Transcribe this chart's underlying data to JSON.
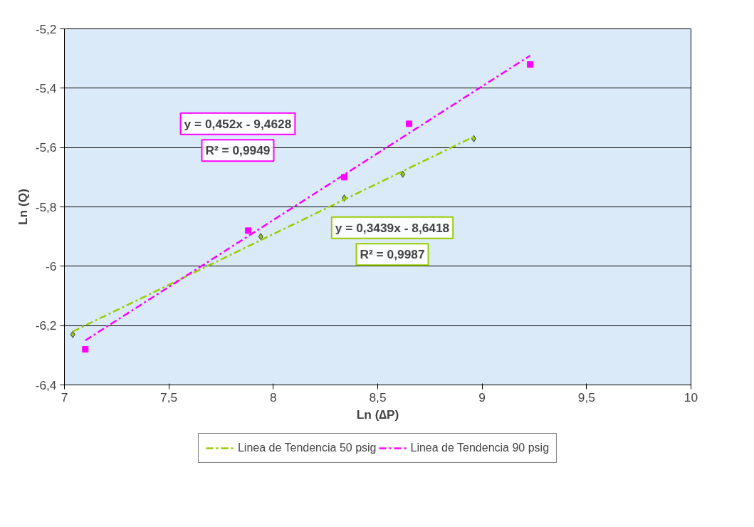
{
  "chart_data": {
    "type": "scatter",
    "xlabel": "Ln (∆P)",
    "ylabel": "Ln (Q)",
    "xlim": [
      7,
      10
    ],
    "xticks": [
      7,
      {
        "value": 7.5,
        "label": "7,5"
      },
      8,
      {
        "value": 8.5,
        "label": "8,5"
      },
      9,
      {
        "value": 9.5,
        "label": "9,5"
      },
      10
    ],
    "ylim": [
      -6.4,
      -5.2
    ],
    "yticks": [
      {
        "value": -6.4,
        "label": "-6,4"
      },
      {
        "value": -6.2,
        "label": "-6,2"
      },
      -6,
      {
        "value": -5.8,
        "label": "-5,8"
      },
      {
        "value": -5.6,
        "label": "-5,6"
      },
      {
        "value": -5.4,
        "label": "-5,4"
      },
      {
        "value": -5.2,
        "label": "-5,2"
      }
    ],
    "grid": "y",
    "legend": "bottom",
    "series": [
      {
        "marker": "diamond",
        "color": "#99cc00",
        "x": [
          7.04,
          7.94,
          8.34,
          8.62,
          8.96
        ],
        "values": [
          -6.23,
          -5.9,
          -5.77,
          -5.69,
          -5.57
        ]
      },
      {
        "marker": "square",
        "color": "#ff00ff",
        "x": [
          7.1,
          7.88,
          8.34,
          8.65,
          9.23
        ],
        "values": [
          -6.28,
          -5.88,
          -5.7,
          -5.52,
          -5.32
        ]
      },
      {
        "type": "line",
        "name": "Linea de Tendencia 50 psig",
        "line_style": "dashed",
        "color": "#99cc00",
        "x": [
          7.04,
          8.97
        ],
        "values": [
          -6.22,
          -5.56
        ]
      },
      {
        "type": "line",
        "name": "Linea de Tendencia 90 psig",
        "line_style": "dashed",
        "color": "#ff00ff",
        "x": [
          7.1,
          9.23
        ],
        "values": [
          -6.25,
          -5.29
        ]
      }
    ],
    "annotations": [
      "y = 0,3439x - 8,6418\nR² = 0,9987",
      "y = 0,452x - 9,4628\nR² = 0,9949"
    ]
  }
}
